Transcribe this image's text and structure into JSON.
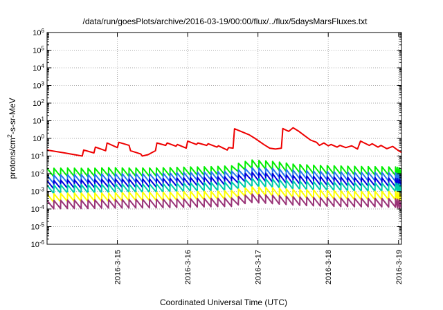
{
  "chart_data": {
    "type": "line",
    "title": "/data/run/goesPlots/archive/2016-03-19/00:00/flux/../flux/5daysMarsFluxes.txt",
    "xlabel": "Coordinated Universal Time (UTC)",
    "ylabel_prefix": "protons/cm",
    "ylabel_sup": "2",
    "ylabel_suffix": "-s-sr-MeV",
    "x_range": [
      "2016-03-14T00:00",
      "2016-03-19T01:00"
    ],
    "x_ticks": [
      "2016-3-15",
      "2016-3-16",
      "2016-3-17",
      "2016-3-18",
      "2016-3-19"
    ],
    "y_scale": "log",
    "y_range": [
      1e-06,
      1000000.0
    ],
    "y_ticks": [
      {
        "base": "10",
        "exp": "-6"
      },
      {
        "base": "10",
        "exp": "-5"
      },
      {
        "base": "10",
        "exp": "-4"
      },
      {
        "base": "10",
        "exp": "-3"
      },
      {
        "base": "10",
        "exp": "-2"
      },
      {
        "base": "10",
        "exp": "-1"
      },
      {
        "base": "10",
        "exp": "0"
      },
      {
        "base": "10",
        "exp": "1"
      },
      {
        "base": "10",
        "exp": "2"
      },
      {
        "base": "10",
        "exp": "3"
      },
      {
        "base": "10",
        "exp": "4"
      },
      {
        "base": "10",
        "exp": "5"
      },
      {
        "base": "10",
        "exp": "6"
      }
    ],
    "grid": true,
    "series": [
      {
        "color": "#ee0000",
        "x": [
          "2016-03-14T00:00",
          "2016-03-14T06:00",
          "2016-03-14T12:00",
          "2016-03-14T12:30",
          "2016-03-14T16:00",
          "2016-03-14T16:30",
          "2016-03-14T20:00",
          "2016-03-14T20:30",
          "2016-03-15T00:00",
          "2016-03-15T00:30",
          "2016-03-15T04:00",
          "2016-03-15T04:30",
          "2016-03-15T08:00",
          "2016-03-15T08:30",
          "2016-03-15T10:30",
          "2016-03-15T13:00",
          "2016-03-15T13:30",
          "2016-03-15T16:30",
          "2016-03-15T17:00",
          "2016-03-15T20:00",
          "2016-03-15T20:30",
          "2016-03-15T23:30",
          "2016-03-16T00:00",
          "2016-03-16T03:00",
          "2016-03-16T03:30",
          "2016-03-16T06:30",
          "2016-03-16T07:00",
          "2016-03-16T10:00",
          "2016-03-16T10:30",
          "2016-03-16T13:30",
          "2016-03-16T14:00",
          "2016-03-16T15:30",
          "2016-03-16T16:00",
          "2016-03-16T19:00",
          "2016-03-16T21:00",
          "2016-03-16T23:00",
          "2016-03-17T02:00",
          "2016-03-17T04:00",
          "2016-03-17T06:00",
          "2016-03-17T08:00",
          "2016-03-17T08:30",
          "2016-03-17T10:30",
          "2016-03-17T12:00",
          "2016-03-17T14:00",
          "2016-03-17T16:00",
          "2016-03-17T18:00",
          "2016-03-17T20:00",
          "2016-03-17T21:00",
          "2016-03-17T22:30",
          "2016-03-18T00:00",
          "2016-03-18T01:00",
          "2016-03-18T03:00",
          "2016-03-18T04:00",
          "2016-03-18T06:00",
          "2016-03-18T08:00",
          "2016-03-18T10:00",
          "2016-03-18T11:00",
          "2016-03-18T14:00",
          "2016-03-18T15:00",
          "2016-03-18T17:00",
          "2016-03-18T18:00",
          "2016-03-18T20:00",
          "2016-03-18T22:00",
          "2016-03-19T00:00",
          "2016-03-19T01:00"
        ],
        "y": [
          0.22,
          0.15,
          0.1,
          0.22,
          0.15,
          0.32,
          0.2,
          0.55,
          0.3,
          0.6,
          0.4,
          0.2,
          0.13,
          0.1,
          0.12,
          0.2,
          0.55,
          0.4,
          0.55,
          0.36,
          0.45,
          0.28,
          0.7,
          0.45,
          0.55,
          0.4,
          0.5,
          0.32,
          0.38,
          0.22,
          0.3,
          0.28,
          3.5,
          2.2,
          1.6,
          1.0,
          0.45,
          0.28,
          0.25,
          0.28,
          3.6,
          2.5,
          4.0,
          2.5,
          1.4,
          0.8,
          0.6,
          0.4,
          0.55,
          0.38,
          0.45,
          0.32,
          0.4,
          0.3,
          0.38,
          0.25,
          0.7,
          0.4,
          0.5,
          0.32,
          0.4,
          0.26,
          0.35,
          0.2,
          0.16
        ]
      },
      {
        "color": "#00ee00",
        "x": [
          "2016-03-14T00:00",
          "2016-03-14T07:00",
          "2016-03-14T14:00",
          "2016-03-14T21:00",
          "2016-03-15T04:00",
          "2016-03-15T11:00",
          "2016-03-15T18:00",
          "2016-03-16T01:00",
          "2016-03-16T08:00",
          "2016-03-16T15:00",
          "2016-03-16T22:00",
          "2016-03-17T05:00",
          "2016-03-17T12:00",
          "2016-03-17T19:00",
          "2016-03-18T02:00",
          "2016-03-18T09:00",
          "2016-03-18T16:00",
          "2016-03-18T23:00",
          "2016-03-19T01:00"
        ],
        "y": [
          0.02,
          0.021,
          0.02,
          0.022,
          0.021,
          0.021,
          0.022,
          0.024,
          0.025,
          0.028,
          0.06,
          0.05,
          0.035,
          0.03,
          0.028,
          0.026,
          0.025,
          0.024,
          0.02
        ]
      },
      {
        "color": "#2277ee",
        "x": [
          "2016-03-14T00:00",
          "2016-03-14T07:00",
          "2016-03-14T14:00",
          "2016-03-14T21:00",
          "2016-03-15T04:00",
          "2016-03-15T11:00",
          "2016-03-15T18:00",
          "2016-03-16T01:00",
          "2016-03-16T08:00",
          "2016-03-16T15:00",
          "2016-03-16T22:00",
          "2016-03-17T05:00",
          "2016-03-17T12:00",
          "2016-03-17T19:00",
          "2016-03-18T02:00",
          "2016-03-18T09:00",
          "2016-03-18T16:00",
          "2016-03-18T23:00",
          "2016-03-19T01:00"
        ],
        "y": [
          0.008,
          0.009,
          0.009,
          0.01,
          0.01,
          0.01,
          0.011,
          0.012,
          0.013,
          0.014,
          0.022,
          0.02,
          0.016,
          0.014,
          0.013,
          0.012,
          0.012,
          0.011,
          0.009
        ]
      },
      {
        "color": "#0000dd",
        "x": [
          "2016-03-14T00:00",
          "2016-03-14T07:00",
          "2016-03-14T14:00",
          "2016-03-14T21:00",
          "2016-03-15T04:00",
          "2016-03-15T11:00",
          "2016-03-15T18:00",
          "2016-03-16T01:00",
          "2016-03-16T08:00",
          "2016-03-16T15:00",
          "2016-03-16T22:00",
          "2016-03-17T05:00",
          "2016-03-17T12:00",
          "2016-03-17T19:00",
          "2016-03-18T02:00",
          "2016-03-18T09:00",
          "2016-03-18T16:00",
          "2016-03-18T23:00",
          "2016-03-19T01:00"
        ],
        "y": [
          0.004,
          0.0045,
          0.0045,
          0.005,
          0.005,
          0.005,
          0.0055,
          0.006,
          0.0065,
          0.007,
          0.012,
          0.01,
          0.008,
          0.007,
          0.0065,
          0.006,
          0.006,
          0.0055,
          0.0045
        ]
      },
      {
        "color": "#00ccaa",
        "x": [
          "2016-03-14T00:00",
          "2016-03-14T07:00",
          "2016-03-14T14:00",
          "2016-03-14T21:00",
          "2016-03-15T04:00",
          "2016-03-15T11:00",
          "2016-03-15T18:00",
          "2016-03-16T01:00",
          "2016-03-16T08:00",
          "2016-03-16T15:00",
          "2016-03-16T22:00",
          "2016-03-17T05:00",
          "2016-03-17T12:00",
          "2016-03-17T19:00",
          "2016-03-18T02:00",
          "2016-03-18T09:00",
          "2016-03-18T16:00",
          "2016-03-18T23:00",
          "2016-03-19T01:00"
        ],
        "y": [
          0.0022,
          0.0024,
          0.0024,
          0.0026,
          0.0026,
          0.0026,
          0.0028,
          0.003,
          0.0032,
          0.0034,
          0.0055,
          0.005,
          0.004,
          0.0035,
          0.0033,
          0.0031,
          0.003,
          0.0029,
          0.0024
        ]
      },
      {
        "color": "#ffff00",
        "x": [
          "2016-03-14T00:00",
          "2016-03-14T07:00",
          "2016-03-14T14:00",
          "2016-03-14T21:00",
          "2016-03-15T04:00",
          "2016-03-15T11:00",
          "2016-03-15T18:00",
          "2016-03-16T01:00",
          "2016-03-16T08:00",
          "2016-03-16T15:00",
          "2016-03-16T22:00",
          "2016-03-17T05:00",
          "2016-03-17T12:00",
          "2016-03-17T19:00",
          "2016-03-18T02:00",
          "2016-03-18T09:00",
          "2016-03-18T16:00",
          "2016-03-18T23:00",
          "2016-03-19T01:00"
        ],
        "y": [
          0.0007,
          0.0008,
          0.0008,
          0.0008,
          0.0009,
          0.0009,
          0.0009,
          0.001,
          0.001,
          0.0011,
          0.0018,
          0.0016,
          0.0013,
          0.0012,
          0.0011,
          0.001,
          0.001,
          0.001,
          0.0008
        ]
      },
      {
        "color": "#993377",
        "x": [
          "2016-03-14T00:00",
          "2016-03-14T07:00",
          "2016-03-14T14:00",
          "2016-03-14T21:00",
          "2016-03-15T04:00",
          "2016-03-15T11:00",
          "2016-03-15T18:00",
          "2016-03-16T01:00",
          "2016-03-16T08:00",
          "2016-03-16T15:00",
          "2016-03-16T22:00",
          "2016-03-17T05:00",
          "2016-03-17T12:00",
          "2016-03-17T19:00",
          "2016-03-18T02:00",
          "2016-03-18T09:00",
          "2016-03-18T16:00",
          "2016-03-18T23:00",
          "2016-03-19T01:00"
        ],
        "y": [
          0.0003,
          0.00032,
          0.00032,
          0.00034,
          0.00034,
          0.00035,
          0.00036,
          0.00038,
          0.0004,
          0.00042,
          0.0007,
          0.0006,
          0.0005,
          0.00045,
          0.00042,
          0.0004,
          0.0004,
          0.00038,
          0.0003
        ]
      }
    ]
  }
}
